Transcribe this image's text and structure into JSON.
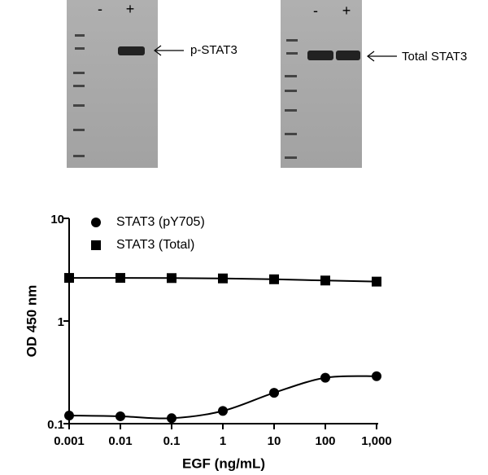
{
  "blots": [
    {
      "lanes": [
        "-",
        "+"
      ],
      "label": "p-STAT3"
    },
    {
      "lanes": [
        "-",
        "+"
      ],
      "label": "Total STAT3"
    }
  ],
  "chart_data": {
    "type": "line",
    "ylabel": "OD 450 nm",
    "xlabel": "EGF (ng/mL)",
    "x": [
      0.001,
      0.01,
      0.1,
      1,
      10,
      100,
      1000
    ],
    "series": [
      {
        "name": "STAT3 (pY705)",
        "color": "#000000",
        "marker": "circle",
        "values": [
          0.12,
          0.118,
          0.113,
          0.133,
          0.2,
          0.28,
          0.29
        ]
      },
      {
        "name": "STAT3 (Total)",
        "color": "#000000",
        "marker": "square",
        "values": [
          2.63,
          2.63,
          2.62,
          2.6,
          2.55,
          2.48,
          2.42
        ]
      }
    ],
    "xlim": [
      0.001,
      1000
    ],
    "ylim": [
      0.1,
      10
    ],
    "xlog": true,
    "ylog": true,
    "xticks": [
      0.001,
      0.01,
      0.1,
      1,
      10,
      100,
      {
        "value": 1000,
        "label": "1,000"
      }
    ],
    "yticks": [
      0.1,
      1,
      10
    ],
    "legend": "top-left",
    "grid": false
  }
}
